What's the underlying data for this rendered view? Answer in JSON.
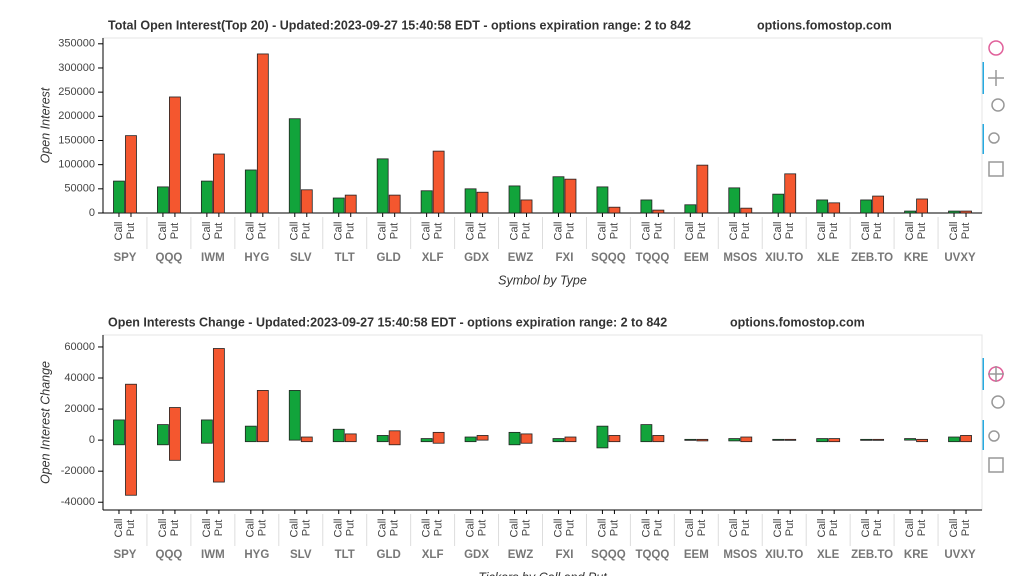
{
  "chart_data": [
    {
      "type": "bar",
      "title": "Total Open Interest(Top 20) - Updated:2023-09-27 15:40:58 EDT - options expiration range: 2 to 842",
      "site": "options.fomostop.com",
      "y_label": "Open Interest",
      "x_label": "Symbol by Type",
      "categories": [
        "SPY",
        "QQQ",
        "IWM",
        "HYG",
        "SLV",
        "TLT",
        "GLD",
        "XLF",
        "GDX",
        "EWZ",
        "FXI",
        "SQQQ",
        "TQQQ",
        "EEM",
        "MSOS",
        "XIU.TO",
        "XLE",
        "ZEB.TO",
        "KRE",
        "UVXY"
      ],
      "subcategories": [
        "Call",
        "Put"
      ],
      "series": [
        {
          "name": "Call",
          "color": "#12a43b",
          "values": [
            66000,
            54000,
            66000,
            89000,
            195000,
            31000,
            112000,
            46000,
            50000,
            56000,
            75000,
            54000,
            27000,
            17000,
            52000,
            39000,
            27000,
            27000,
            4000,
            4000
          ]
        },
        {
          "name": "Put",
          "color": "#f4572f",
          "values": [
            160000,
            240000,
            122000,
            329000,
            48000,
            37000,
            37000,
            128000,
            43000,
            27000,
            70000,
            12000,
            6000,
            99000,
            10000,
            81000,
            21000,
            35000,
            29000,
            4000
          ]
        }
      ],
      "ylim": [
        0,
        362000
      ],
      "yticks": [
        0,
        50000,
        100000,
        150000,
        200000,
        250000,
        300000,
        350000
      ]
    },
    {
      "type": "floating_bar",
      "title": "Open Interests Change - Updated:2023-09-27 15:40:58 EDT - options expiration range: 2 to 842",
      "site": "options.fomostop.com",
      "y_label": "Open Interest Change",
      "x_label": "Tickers by Call and Put",
      "categories": [
        "SPY",
        "QQQ",
        "IWM",
        "HYG",
        "SLV",
        "TLT",
        "GLD",
        "XLF",
        "GDX",
        "EWZ",
        "FXI",
        "SQQQ",
        "TQQQ",
        "EEM",
        "MSOS",
        "XIU.TO",
        "XLE",
        "ZEB.TO",
        "KRE",
        "UVXY"
      ],
      "subcategories": [
        "Call",
        "Put"
      ],
      "series": [
        {
          "name": "Call",
          "color": "#12a43b",
          "high": [
            13000,
            10000,
            13000,
            9000,
            32000,
            7000,
            3000,
            1000,
            2000,
            5000,
            1000,
            9000,
            10000,
            500,
            1000,
            500,
            1000,
            500,
            1000,
            2000
          ],
          "low": [
            -3000,
            -3000,
            -2000,
            -1000,
            0,
            -1000,
            -1000,
            -1000,
            -1000,
            -3000,
            -1000,
            -5000,
            -1000,
            0,
            -500,
            0,
            -1000,
            0,
            0,
            -1000
          ]
        },
        {
          "name": "Put",
          "color": "#f4572f",
          "high": [
            36000,
            21000,
            59000,
            32000,
            2000,
            4000,
            6000,
            5000,
            3000,
            4000,
            2000,
            3000,
            3000,
            500,
            2000,
            500,
            1000,
            500,
            500,
            3000
          ],
          "low": [
            -35500,
            -13000,
            -27000,
            -1000,
            -1000,
            -1000,
            -3000,
            -2000,
            0,
            -2000,
            -1000,
            -1000,
            -1000,
            -500,
            -1000,
            0,
            -1000,
            0,
            -1000,
            -1000
          ]
        }
      ],
      "ylim": [
        -45000,
        67700
      ],
      "yticks": [
        -40000,
        -20000,
        0,
        20000,
        40000,
        60000
      ]
    }
  ]
}
